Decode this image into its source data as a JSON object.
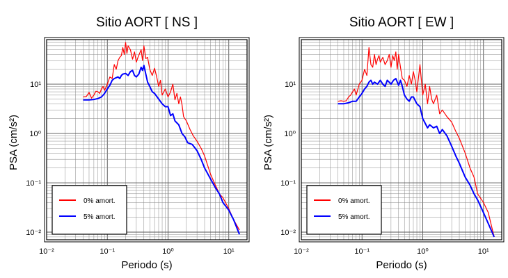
{
  "chart_data": [
    {
      "type": "line",
      "title": "Sitio AORT [ NS ]",
      "xlabel": "Periodo (s)",
      "ylabel": "PSA (cm/s²)",
      "xscale": "log",
      "yscale": "log",
      "xlim": [
        0.01,
        20
      ],
      "ylim": [
        0.007,
        80
      ],
      "xticks": [
        0.01,
        0.1,
        1,
        10
      ],
      "xtick_labels": [
        "10⁻²",
        "10⁻¹",
        "10⁰",
        "10¹"
      ],
      "yticks": [
        0.01,
        0.1,
        1,
        10
      ],
      "ytick_labels": [
        "10⁻²",
        "10⁻¹",
        "10⁰",
        "10¹"
      ],
      "grid": true,
      "legend_position": "bottom-left",
      "series": [
        {
          "name": "0% amort.",
          "color": "#ff0000",
          "x": [
            0.04,
            0.045,
            0.05,
            0.055,
            0.06,
            0.065,
            0.07,
            0.075,
            0.08,
            0.085,
            0.09,
            0.1,
            0.11,
            0.12,
            0.13,
            0.14,
            0.15,
            0.16,
            0.17,
            0.18,
            0.19,
            0.2,
            0.21,
            0.22,
            0.24,
            0.26,
            0.28,
            0.3,
            0.32,
            0.34,
            0.36,
            0.38,
            0.4,
            0.43,
            0.46,
            0.5,
            0.55,
            0.6,
            0.65,
            0.7,
            0.75,
            0.8,
            0.9,
            1.0,
            1.1,
            1.2,
            1.3,
            1.4,
            1.5,
            1.6,
            1.7,
            1.8,
            2.0,
            2.3,
            2.6,
            3.0,
            3.5,
            4.0,
            5.0,
            6.0,
            7.0,
            8.0,
            10.0,
            12.0,
            15.0
          ],
          "y": [
            5.5,
            5.6,
            6.8,
            5.2,
            6.0,
            7.2,
            7.0,
            6.5,
            8.0,
            9.0,
            7.5,
            10.0,
            14.0,
            13.0,
            25.0,
            20.0,
            30.0,
            35.0,
            38.0,
            55.0,
            40.0,
            70.0,
            42.0,
            60.0,
            50.0,
            32.0,
            45.0,
            28.0,
            35.0,
            42.0,
            50.0,
            30.0,
            60.0,
            33.0,
            35.0,
            20.0,
            15.0,
            21.0,
            14.0,
            9.0,
            12.0,
            6.0,
            8.0,
            5.5,
            7.0,
            10.0,
            4.8,
            6.5,
            4.0,
            5.5,
            3.8,
            2.2,
            1.8,
            1.2,
            0.9,
            0.7,
            0.5,
            0.35,
            0.15,
            0.09,
            0.06,
            0.05,
            0.03,
            0.018,
            0.011
          ]
        },
        {
          "name": "5% amort.",
          "color": "#0000ff",
          "x": [
            0.04,
            0.05,
            0.06,
            0.07,
            0.08,
            0.09,
            0.1,
            0.11,
            0.12,
            0.13,
            0.14,
            0.15,
            0.16,
            0.17,
            0.18,
            0.2,
            0.22,
            0.24,
            0.26,
            0.28,
            0.3,
            0.33,
            0.36,
            0.38,
            0.4,
            0.43,
            0.46,
            0.5,
            0.55,
            0.6,
            0.7,
            0.8,
            0.9,
            1.0,
            1.1,
            1.2,
            1.3,
            1.5,
            1.7,
            1.9,
            2.1,
            2.5,
            3.0,
            3.5,
            4.0,
            5.0,
            6.0,
            7.0,
            8.0,
            10.0,
            12.0,
            15.0
          ],
          "y": [
            4.8,
            4.8,
            4.9,
            5.1,
            5.5,
            6.5,
            8.0,
            9.5,
            12.0,
            13.0,
            13.5,
            14.0,
            13.0,
            15.0,
            16.0,
            16.5,
            15.0,
            18.0,
            19.0,
            15.0,
            14.0,
            16.0,
            22.0,
            19.0,
            24.0,
            16.0,
            11.0,
            9.0,
            7.0,
            6.5,
            5.0,
            4.0,
            3.5,
            3.5,
            2.3,
            2.5,
            1.8,
            1.5,
            1.0,
            0.85,
            0.65,
            0.6,
            0.45,
            0.3,
            0.2,
            0.12,
            0.08,
            0.06,
            0.04,
            0.028,
            0.018,
            0.009
          ]
        }
      ]
    },
    {
      "type": "line",
      "title": "Sitio AORT [ EW ]",
      "xlabel": "Periodo (s)",
      "ylabel": "PSA (cm/s²)",
      "xscale": "log",
      "yscale": "log",
      "xlim": [
        0.01,
        20
      ],
      "ylim": [
        0.007,
        80
      ],
      "xticks": [
        0.01,
        0.1,
        1,
        10
      ],
      "xtick_labels": [
        "10⁻²",
        "10⁻¹",
        "10⁰",
        "10¹"
      ],
      "yticks": [
        0.01,
        0.1,
        1,
        10
      ],
      "ytick_labels": [
        "10⁻²",
        "10⁻¹",
        "10⁰",
        "10¹"
      ],
      "grid": true,
      "legend_position": "bottom-left",
      "series": [
        {
          "name": "0% amort.",
          "color": "#ff0000",
          "x": [
            0.04,
            0.045,
            0.05,
            0.055,
            0.06,
            0.065,
            0.07,
            0.075,
            0.08,
            0.09,
            0.1,
            0.11,
            0.12,
            0.13,
            0.14,
            0.15,
            0.16,
            0.17,
            0.18,
            0.19,
            0.2,
            0.22,
            0.24,
            0.26,
            0.28,
            0.3,
            0.32,
            0.34,
            0.36,
            0.38,
            0.4,
            0.43,
            0.46,
            0.5,
            0.55,
            0.6,
            0.65,
            0.7,
            0.75,
            0.8,
            0.9,
            1.0,
            1.1,
            1.2,
            1.3,
            1.4,
            1.5,
            1.7,
            1.9,
            2.1,
            2.5,
            3.0,
            3.5,
            4.0,
            5.0,
            6.0,
            7.0,
            8.0,
            10.0,
            12.0,
            15.0
          ],
          "y": [
            4.5,
            4.6,
            4.5,
            4.6,
            5.5,
            6.0,
            7.0,
            8.0,
            6.0,
            10.0,
            12.0,
            20.0,
            15.0,
            55.0,
            25.0,
            22.0,
            40.0,
            25.0,
            32.0,
            38.0,
            28.0,
            35.0,
            25.0,
            30.0,
            40.0,
            22.0,
            38.0,
            30.0,
            45.0,
            20.0,
            40.0,
            22.0,
            13.0,
            12.0,
            9.0,
            15.0,
            10.0,
            18.0,
            12.0,
            7.0,
            25.0,
            6.0,
            10.0,
            4.0,
            9.0,
            5.0,
            4.0,
            6.0,
            2.5,
            3.0,
            2.2,
            1.7,
            1.1,
            0.8,
            0.4,
            0.2,
            0.13,
            0.06,
            0.04,
            0.025,
            0.008
          ]
        },
        {
          "name": "5% amort.",
          "color": "#0000ff",
          "x": [
            0.04,
            0.05,
            0.06,
            0.07,
            0.08,
            0.09,
            0.1,
            0.11,
            0.12,
            0.13,
            0.14,
            0.15,
            0.16,
            0.18,
            0.2,
            0.22,
            0.24,
            0.26,
            0.28,
            0.3,
            0.33,
            0.36,
            0.4,
            0.43,
            0.46,
            0.5,
            0.55,
            0.6,
            0.65,
            0.7,
            0.8,
            0.9,
            1.0,
            1.1,
            1.2,
            1.3,
            1.4,
            1.5,
            1.7,
            1.9,
            2.1,
            2.5,
            3.0,
            3.5,
            4.0,
            5.0,
            6.0,
            7.0,
            8.0,
            10.0,
            12.0,
            15.0
          ],
          "y": [
            4.0,
            4.0,
            4.2,
            4.5,
            4.5,
            5.5,
            6.5,
            8.0,
            9.0,
            11.0,
            12.0,
            10.0,
            11.0,
            10.0,
            12.0,
            10.0,
            9.0,
            12.0,
            11.0,
            10.0,
            12.0,
            13.0,
            9.5,
            12.0,
            9.0,
            6.0,
            5.0,
            4.5,
            5.5,
            5.5,
            4.0,
            3.5,
            2.0,
            1.6,
            1.3,
            1.5,
            1.4,
            1.3,
            1.4,
            1.0,
            1.2,
            0.9,
            0.55,
            0.35,
            0.25,
            0.13,
            0.09,
            0.06,
            0.045,
            0.025,
            0.015,
            0.008
          ]
        }
      ]
    }
  ]
}
